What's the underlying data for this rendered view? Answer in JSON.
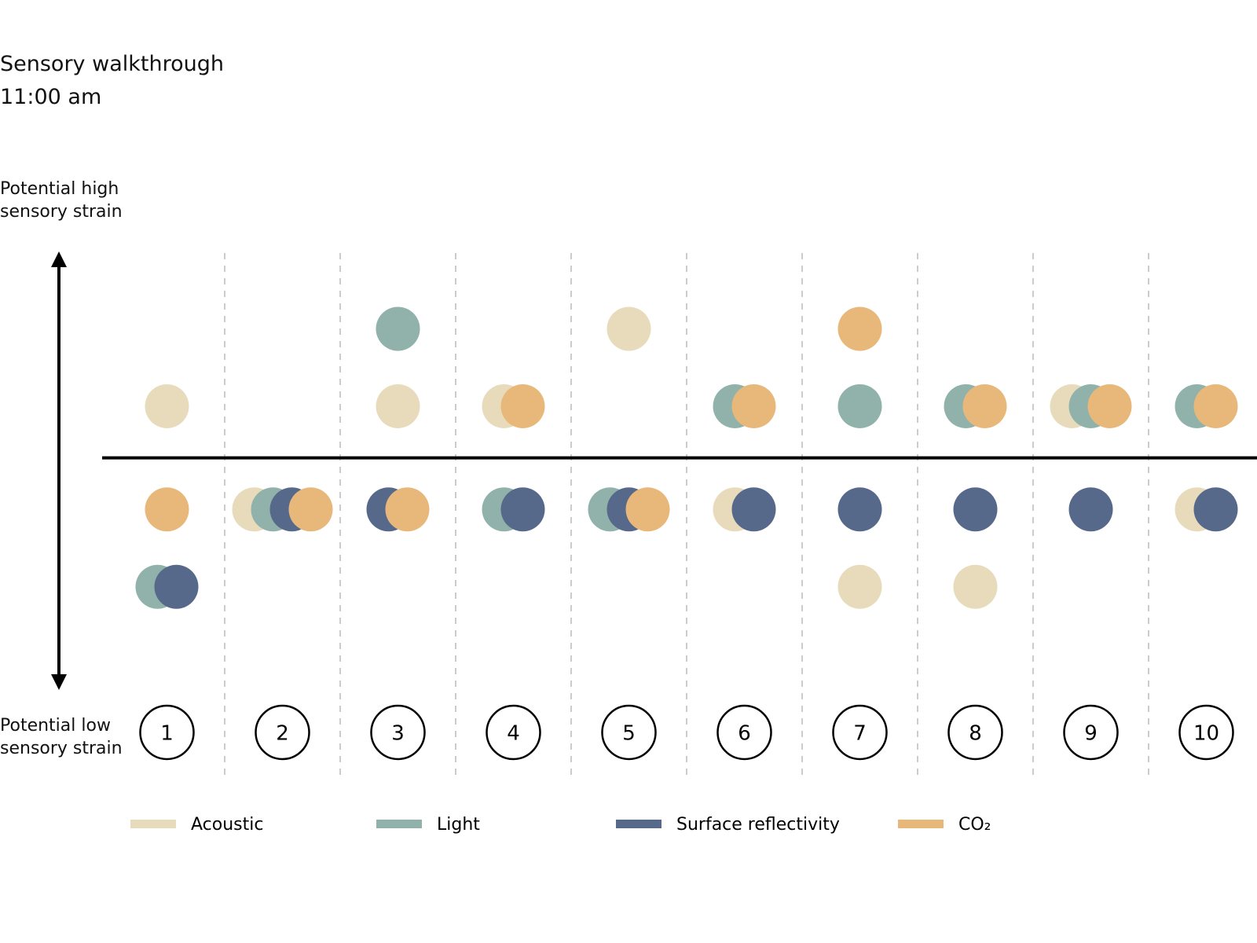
{
  "chart_data": {
    "type": "dot",
    "title": "Sensory walkthrough",
    "subtitle": "11:00 am",
    "y_label_high": "Potential high sensory strain",
    "y_label_low": "Potential low sensory strain",
    "categories": [
      "1",
      "2",
      "3",
      "4",
      "5",
      "6",
      "7",
      "8",
      "9",
      "10"
    ],
    "ylim": [
      -4.5,
      4
    ],
    "series": [
      {
        "name": "Acoustic",
        "color": "#e8dbbb",
        "values": [
          1,
          -1,
          1,
          1,
          2.5,
          -1,
          -2.5,
          -2.5,
          1,
          -1
        ]
      },
      {
        "name": "Light",
        "color": "#90b2aa",
        "values": [
          -2.5,
          -1,
          2.5,
          -1,
          -1,
          1,
          1,
          1,
          1,
          1
        ]
      },
      {
        "name": "Surface reflectivity",
        "color": "#56698a",
        "values": [
          -2.5,
          -1,
          -1,
          -1,
          -1,
          -1,
          -1,
          -1,
          -1,
          -1
        ]
      },
      {
        "name": "CO₂",
        "color": "#e8b87a",
        "values": [
          -1,
          -1,
          -1,
          1,
          -1,
          1,
          2.5,
          1,
          1,
          1
        ]
      }
    ]
  }
}
